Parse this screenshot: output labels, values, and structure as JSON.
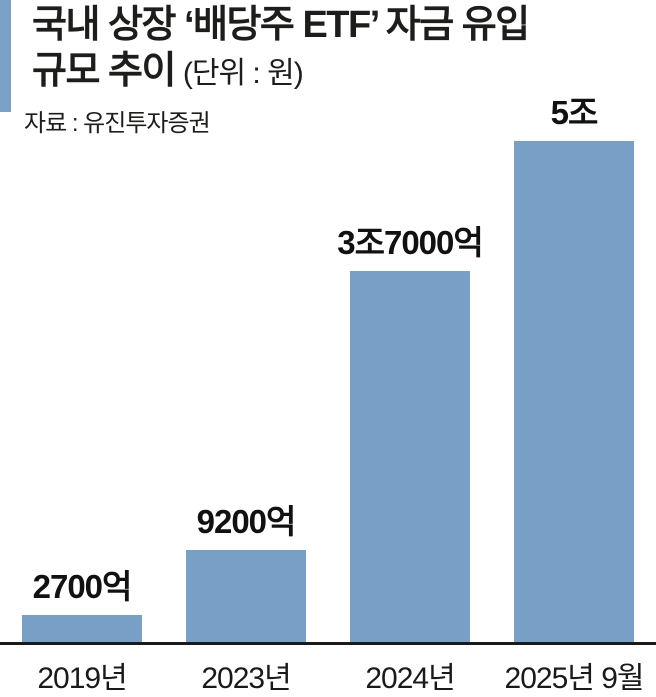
{
  "header": {
    "title_line1": "국내 상장 ‘배당주 ETF’ 자금 유입",
    "title_line2_bold": "규모 추이",
    "title_line2_unit": "(단위 : 원)",
    "source": "자료 : 유진투자증권"
  },
  "colors": {
    "bar": "#78A0C6",
    "accent_bar": "#7AA2C8",
    "text": "#1D1D1B",
    "axis_line": "#1A1A1A",
    "background": "#FFFFFF"
  },
  "chart_data": {
    "type": "bar",
    "title": "국내 상장 ‘배당주 ETF’ 자금 유입 규모 추이",
    "unit_note": "단위 : 원",
    "source": "유진투자증권",
    "categories": [
      "2019년",
      "2023년",
      "2024년",
      "2025년 9월"
    ],
    "values": [
      2700,
      9200,
      37000,
      50000
    ],
    "value_unit": "억 원",
    "value_labels": [
      "2700억",
      "9200억",
      "3조7000억",
      "5조"
    ],
    "xlabel": "",
    "ylabel": "",
    "ylim": [
      0,
      50000
    ],
    "grid": false,
    "legend": "none",
    "bar_color": "#78A0C6"
  }
}
